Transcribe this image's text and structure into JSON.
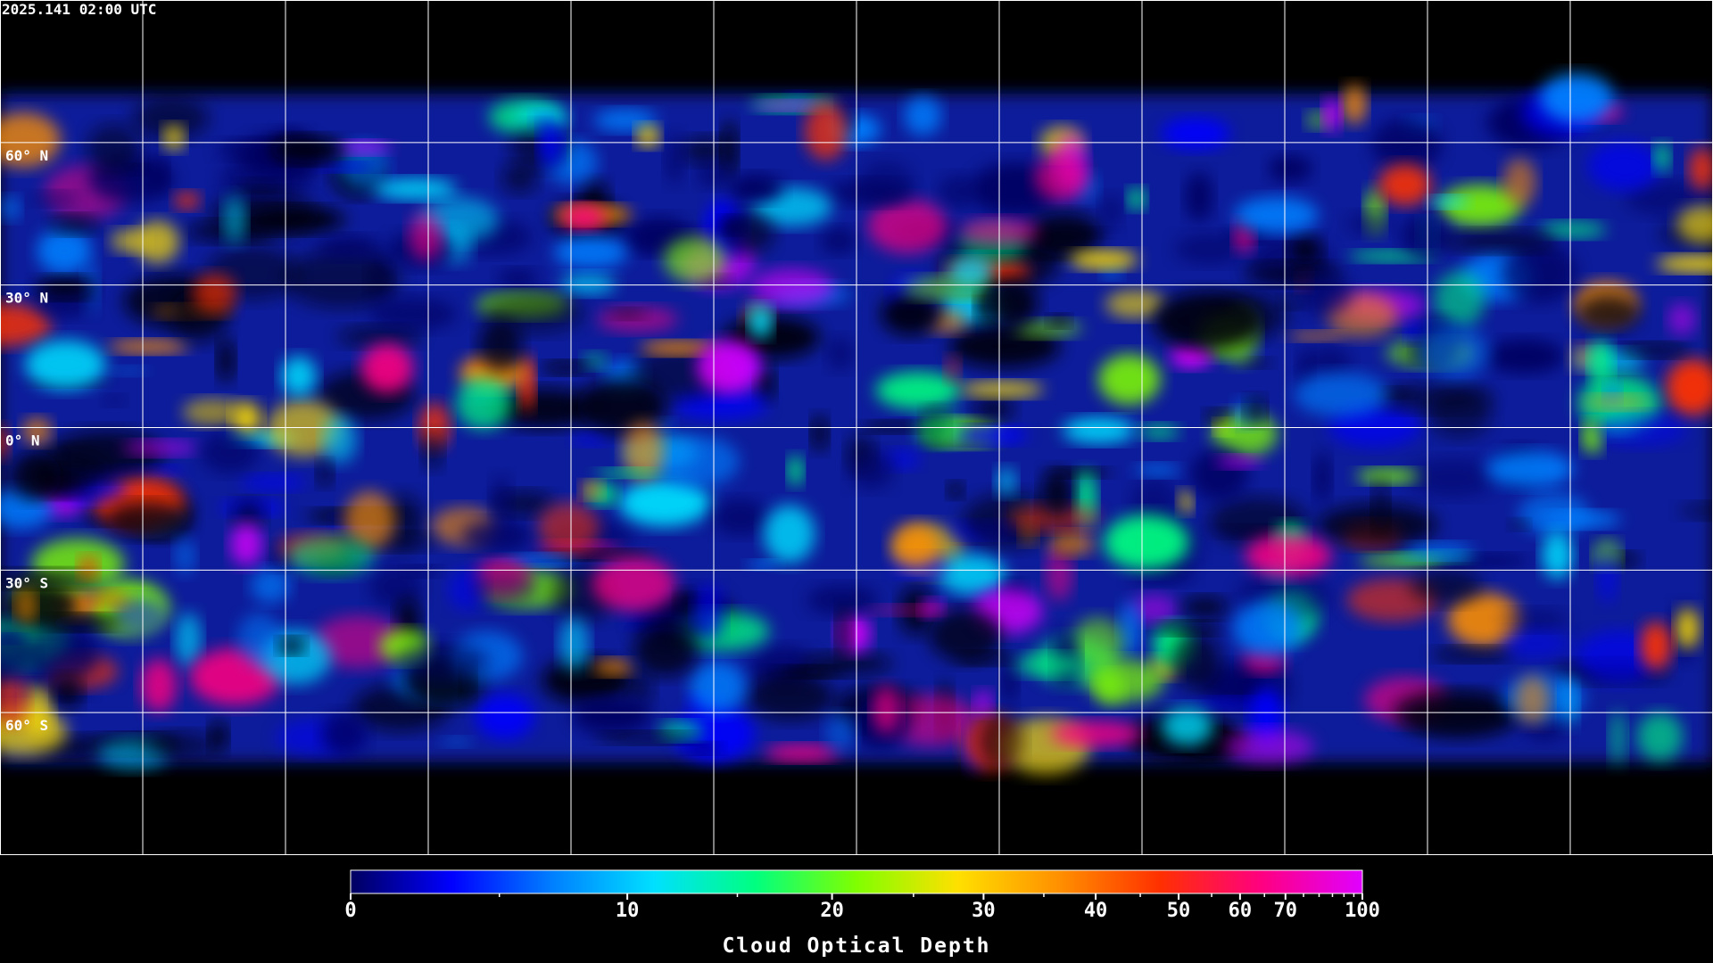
{
  "chart_data": {
    "type": "map",
    "timestamp": "2025.141 02:00 UTC",
    "ylim": [
      -90,
      90
    ],
    "latitudes": [
      {
        "value": 60,
        "label": "60° N"
      },
      {
        "value": 30,
        "label": "30° N"
      },
      {
        "value": 0,
        "label": "0° N"
      },
      {
        "value": -30,
        "label": "30° S"
      },
      {
        "value": -60,
        "label": "60° S"
      }
    ],
    "colorbar": {
      "title": "Cloud Optical Depth",
      "clim": [
        0,
        100
      ],
      "ticks": [
        0,
        10,
        20,
        30,
        40,
        50,
        60,
        70,
        100
      ],
      "minor_ticks": [
        5,
        15,
        25,
        35,
        45,
        55,
        65,
        75,
        80,
        85,
        90,
        95
      ],
      "colors": [
        "#000060",
        "#0000ff",
        "#0080ff",
        "#00e0ff",
        "#00ff80",
        "#80ff00",
        "#ffe000",
        "#ff9000",
        "#ff3000",
        "#ff0080",
        "#e000ff"
      ]
    }
  }
}
